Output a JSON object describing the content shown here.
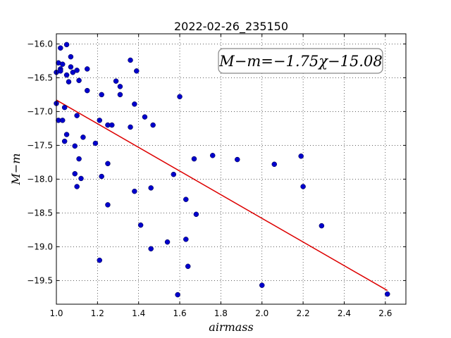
{
  "chart_data": {
    "type": "scatter",
    "title": "2022-02-26_235150",
    "xlabel": "airmass",
    "ylabel": "M−m",
    "xlim": [
      1.0,
      2.7
    ],
    "ylim": [
      -19.85,
      -15.85
    ],
    "xticks": [
      "1.0",
      "1.2",
      "1.4",
      "1.6",
      "1.8",
      "2.0",
      "2.2",
      "2.4",
      "2.6"
    ],
    "yticks": [
      "−16.0",
      "−16.5",
      "−17.0",
      "−17.5",
      "−18.0",
      "−18.5",
      "−19.0",
      "−19.5"
    ],
    "grid": true,
    "annotation": "M−m=−1.75χ−15.08",
    "annotation_position": "top-right",
    "point_color": "#0000cc",
    "line_color": "#dd0000",
    "fit": {
      "slope": -1.75,
      "intercept": -15.08,
      "x_range": [
        1.0,
        2.61
      ]
    },
    "points": [
      {
        "x": 1.0,
        "y": -16.42
      },
      {
        "x": 1.0,
        "y": -16.88
      },
      {
        "x": 1.01,
        "y": -16.28
      },
      {
        "x": 1.02,
        "y": -16.06
      },
      {
        "x": 1.02,
        "y": -16.37
      },
      {
        "x": 1.02,
        "y": -16.4
      },
      {
        "x": 1.03,
        "y": -16.3
      },
      {
        "x": 1.01,
        "y": -17.13
      },
      {
        "x": 1.03,
        "y": -17.13
      },
      {
        "x": 1.04,
        "y": -16.94
      },
      {
        "x": 1.05,
        "y": -16.01
      },
      {
        "x": 1.05,
        "y": -16.46
      },
      {
        "x": 1.07,
        "y": -16.19
      },
      {
        "x": 1.07,
        "y": -16.34
      },
      {
        "x": 1.06,
        "y": -16.56
      },
      {
        "x": 1.08,
        "y": -16.42
      },
      {
        "x": 1.05,
        "y": -17.34
      },
      {
        "x": 1.04,
        "y": -17.44
      },
      {
        "x": 1.09,
        "y": -17.51
      },
      {
        "x": 1.1,
        "y": -16.39
      },
      {
        "x": 1.11,
        "y": -16.54
      },
      {
        "x": 1.1,
        "y": -17.06
      },
      {
        "x": 1.11,
        "y": -17.7
      },
      {
        "x": 1.09,
        "y": -17.92
      },
      {
        "x": 1.12,
        "y": -17.99
      },
      {
        "x": 1.1,
        "y": -18.11
      },
      {
        "x": 1.13,
        "y": -17.38
      },
      {
        "x": 1.15,
        "y": -16.37
      },
      {
        "x": 1.15,
        "y": -16.69
      },
      {
        "x": 1.19,
        "y": -17.47
      },
      {
        "x": 1.21,
        "y": -17.13
      },
      {
        "x": 1.22,
        "y": -16.75
      },
      {
        "x": 1.22,
        "y": -17.96
      },
      {
        "x": 1.25,
        "y": -17.2
      },
      {
        "x": 1.27,
        "y": -17.2
      },
      {
        "x": 1.25,
        "y": -17.77
      },
      {
        "x": 1.25,
        "y": -18.38
      },
      {
        "x": 1.21,
        "y": -19.2
      },
      {
        "x": 1.29,
        "y": -16.55
      },
      {
        "x": 1.31,
        "y": -16.63
      },
      {
        "x": 1.31,
        "y": -16.75
      },
      {
        "x": 1.36,
        "y": -16.24
      },
      {
        "x": 1.39,
        "y": -16.4
      },
      {
        "x": 1.38,
        "y": -16.89
      },
      {
        "x": 1.36,
        "y": -17.23
      },
      {
        "x": 1.43,
        "y": -17.08
      },
      {
        "x": 1.47,
        "y": -17.2
      },
      {
        "x": 1.38,
        "y": -18.18
      },
      {
        "x": 1.46,
        "y": -18.13
      },
      {
        "x": 1.41,
        "y": -18.68
      },
      {
        "x": 1.46,
        "y": -19.03
      },
      {
        "x": 1.54,
        "y": -18.93
      },
      {
        "x": 1.57,
        "y": -17.93
      },
      {
        "x": 1.6,
        "y": -16.78
      },
      {
        "x": 1.63,
        "y": -18.3
      },
      {
        "x": 1.67,
        "y": -17.7
      },
      {
        "x": 1.68,
        "y": -18.52
      },
      {
        "x": 1.63,
        "y": -18.89
      },
      {
        "x": 1.64,
        "y": -19.29
      },
      {
        "x": 1.59,
        "y": -19.71
      },
      {
        "x": 1.76,
        "y": -17.65
      },
      {
        "x": 1.88,
        "y": -17.71
      },
      {
        "x": 2.06,
        "y": -17.78
      },
      {
        "x": 2.0,
        "y": -19.57
      },
      {
        "x": 2.19,
        "y": -17.66
      },
      {
        "x": 2.2,
        "y": -18.11
      },
      {
        "x": 2.29,
        "y": -18.69
      },
      {
        "x": 2.61,
        "y": -19.7
      }
    ]
  }
}
